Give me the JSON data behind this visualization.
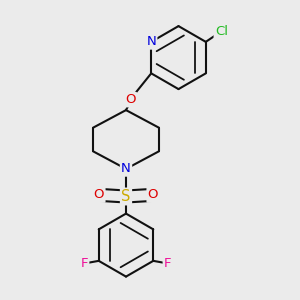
{
  "bg_color": "#ebebeb",
  "bond_color": "#111111",
  "bond_lw": 1.5,
  "dbo": 0.018,
  "atom_colors": {
    "N": "#0000dd",
    "O": "#dd0000",
    "S": "#ccaa00",
    "F": "#ee1199",
    "Cl": "#22bb22"
  },
  "fs": 9.5,
  "figsize": [
    3.0,
    3.0
  ],
  "dpi": 100
}
